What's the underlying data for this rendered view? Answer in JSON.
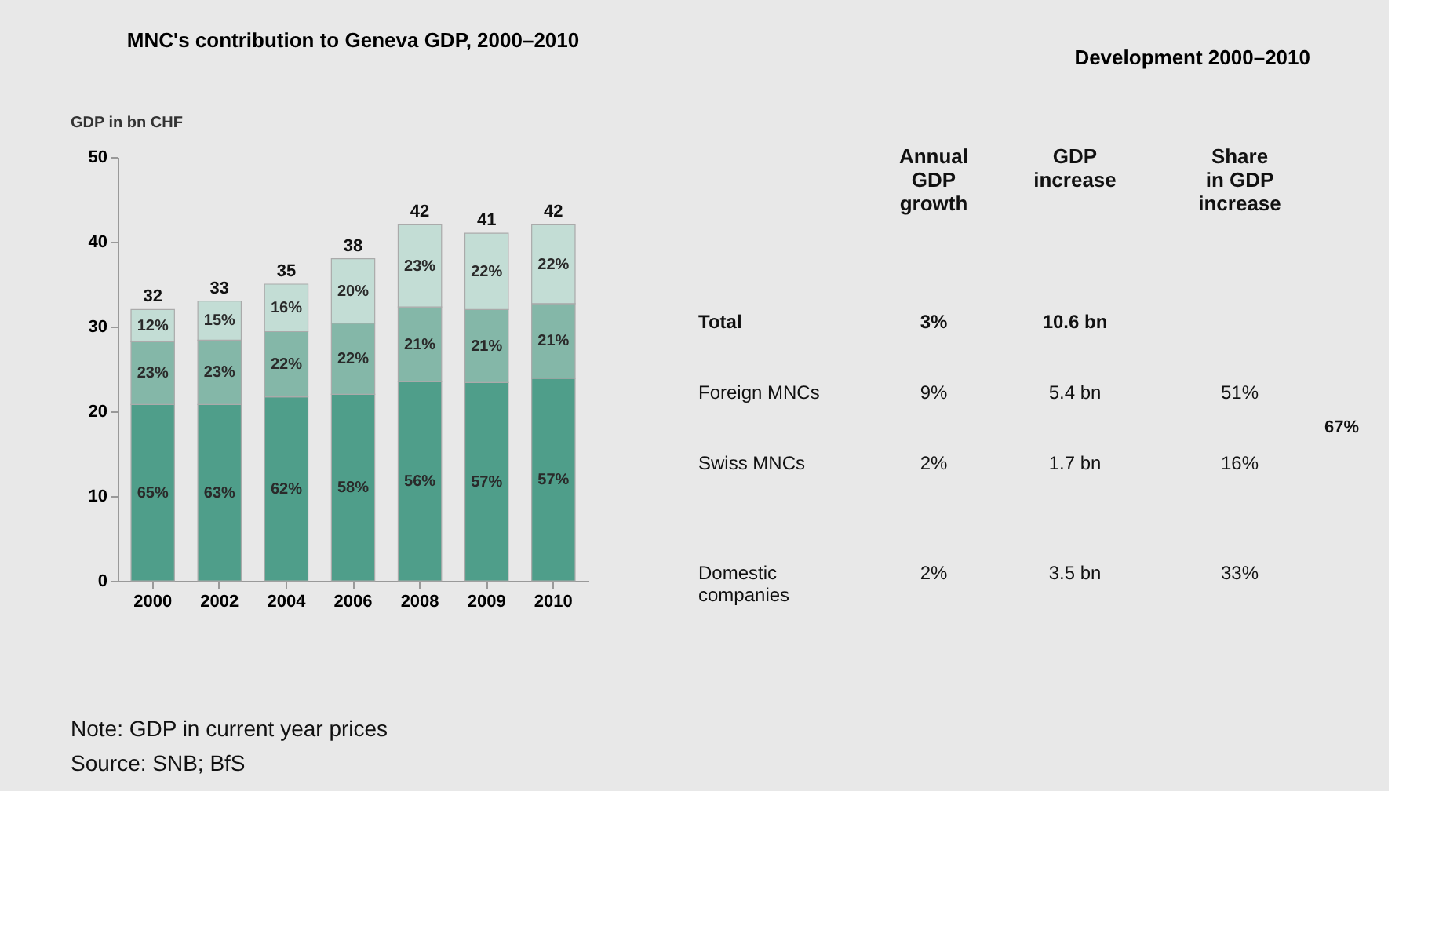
{
  "chart_data": [
    {
      "type": "bar",
      "stacked": true,
      "title": "MNC's contribution to Geneva GDP, 2000–2010",
      "ylabel": "GDP in bn CHF",
      "categories": [
        "2000",
        "2002",
        "2004",
        "2006",
        "2008",
        "2009",
        "2010"
      ],
      "series": [
        {
          "color": "#4f9e8a",
          "values": [
            20.8,
            20.8,
            21.7,
            22.0,
            23.5,
            23.4,
            23.9
          ]
        },
        {
          "color": "#84b7a8",
          "values": [
            7.4,
            7.6,
            7.7,
            8.4,
            8.8,
            8.6,
            8.8
          ]
        },
        {
          "color": "#c3ddd5",
          "values": [
            3.8,
            4.6,
            5.6,
            7.6,
            9.7,
            9.0,
            9.3
          ]
        }
      ],
      "totals": [
        "32",
        "33",
        "35",
        "38",
        "42",
        "41",
        "42"
      ],
      "ylim": [
        0,
        50
      ],
      "yticks": [
        0,
        10,
        20,
        30,
        40,
        50
      ],
      "grid": false,
      "legend": false,
      "annotations": [
        "Note: GDP in current year prices",
        "Source: SNB; BfS",
        "65%",
        "63%",
        "62%",
        "58%",
        "56%",
        "57%",
        "57%",
        "23%",
        "23%",
        "22%",
        "22%",
        "21%",
        "21%",
        "21%",
        "12%",
        "15%",
        "16%",
        "20%",
        "23%",
        "22%",
        "22%"
      ]
    },
    {
      "type": "other",
      "title": "Development 2000–2010",
      "categories": [
        "Total",
        "Foreign MNCs",
        "Swiss MNCs",
        "Domestic\ncompanies"
      ],
      "series": [
        {
          "name": "Annual\nGDP\ngrowth",
          "values": [
            3,
            9,
            2,
            2
          ],
          "value_labels": [
            "3%",
            "9%",
            "2%",
            "2%"
          ]
        },
        {
          "name": "GDP\nincrease",
          "values": [
            10.6,
            5.4,
            1.7,
            3.5
          ],
          "value_labels": [
            "10.6 bn",
            "5.4 bn",
            "1.7 bn",
            "3.5 bn"
          ]
        },
        {
          "name": "Share\nin GDP\nincrease",
          "values": [
            null,
            51,
            16,
            33
          ],
          "value_labels": [
            null,
            "51%",
            "16%",
            "33%"
          ]
        }
      ],
      "annotations": [
        "67%"
      ]
    }
  ]
}
